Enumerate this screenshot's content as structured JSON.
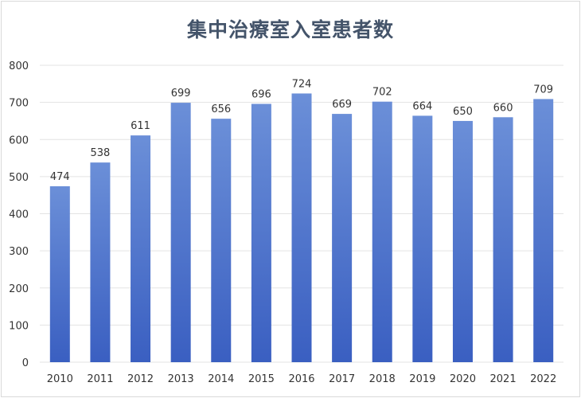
{
  "chart_data": {
    "type": "bar",
    "title": "集中治療室入室患者数",
    "xlabel": "",
    "ylabel": "",
    "categories": [
      "2010",
      "2011",
      "2012",
      "2013",
      "2014",
      "2015",
      "2016",
      "2017",
      "2018",
      "2019",
      "2020",
      "2021",
      "2022"
    ],
    "values": [
      474,
      538,
      611,
      699,
      656,
      696,
      724,
      669,
      702,
      664,
      650,
      660,
      709
    ],
    "ylim": [
      0,
      800
    ],
    "yticks": [
      "0",
      "100",
      "200",
      "300",
      "400",
      "500",
      "600",
      "700",
      "800"
    ],
    "grid": true,
    "legend": "none",
    "data_labels": true,
    "colors": {
      "bar_top": "#6b8fd8",
      "bar_bottom": "#3a5fc1",
      "title": "#44546a",
      "grid": "#e3e3e3",
      "text": "#333333"
    }
  }
}
